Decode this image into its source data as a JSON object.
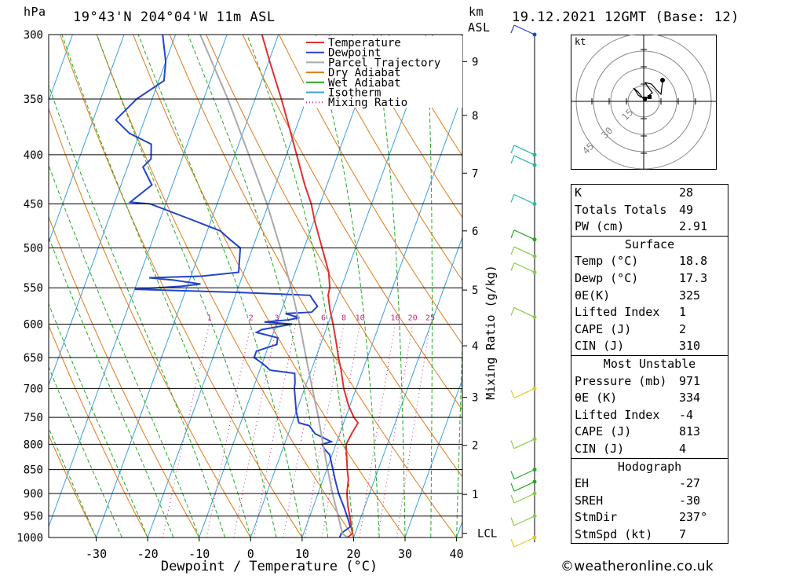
{
  "header": {
    "location": "19°43'N 204°04'W 11m ASL",
    "datetime": "19.12.2021 12GMT (Base: 12)",
    "hpa_unit": "hPa",
    "km_unit": "km",
    "asl_unit": "ASL"
  },
  "chart_data": {
    "type": "line",
    "title": "",
    "xlabel": "Dewpoint / Temperature (°C)",
    "ylabel": "hPa",
    "y2label": "km ASL",
    "mixing_ratio_label": "Mixing Ratio (g/kg)",
    "xlim": [
      -40,
      40
    ],
    "ylim": [
      1000,
      300
    ],
    "y_scale": "log",
    "x_ticks": [
      -30,
      -20,
      -10,
      0,
      10,
      20,
      30,
      40
    ],
    "pressure_ticks": [
      300,
      350,
      400,
      450,
      500,
      550,
      600,
      650,
      700,
      750,
      800,
      850,
      900,
      950,
      1000
    ],
    "km_ticks": [
      {
        "label": "9",
        "p": 320
      },
      {
        "label": "8",
        "p": 364
      },
      {
        "label": "7",
        "p": 418
      },
      {
        "label": "6",
        "p": 480
      },
      {
        "label": "5",
        "p": 553
      },
      {
        "label": "4",
        "p": 632
      },
      {
        "label": "3",
        "p": 715
      },
      {
        "label": "2",
        "p": 802
      },
      {
        "label": "1",
        "p": 902
      },
      {
        "label": "LCL",
        "p": 990
      }
    ],
    "mixing_ratio_values": [
      "1",
      "2",
      "3",
      "4",
      "6",
      "8",
      "10",
      "16",
      "20",
      "25"
    ],
    "legend": [
      "Temperature",
      "Dewpoint",
      "Parcel Trajectory",
      "Dry Adiabat",
      "Wet Adiabat",
      "Isotherm",
      "Mixing Ratio"
    ],
    "legend_position": "top-right",
    "series": [
      {
        "name": "Temperature",
        "color": "#e03030",
        "points": [
          [
            1000,
            18.8
          ],
          [
            990,
            19.5
          ],
          [
            980,
            19.0
          ],
          [
            960,
            18.2
          ],
          [
            930,
            16.8
          ],
          [
            900,
            15.6
          ],
          [
            870,
            14.9
          ],
          [
            850,
            14.0
          ],
          [
            820,
            12.8
          ],
          [
            800,
            12.0
          ],
          [
            780,
            12.3
          ],
          [
            760,
            12.8
          ],
          [
            750,
            11.6
          ],
          [
            730,
            9.8
          ],
          [
            700,
            7.6
          ],
          [
            670,
            5.8
          ],
          [
            650,
            4.4
          ],
          [
            630,
            3.1
          ],
          [
            600,
            1.0
          ],
          [
            580,
            -0.6
          ],
          [
            560,
            -2.0
          ],
          [
            550,
            -2.2
          ],
          [
            530,
            -3.5
          ],
          [
            500,
            -6.5
          ],
          [
            470,
            -9.7
          ],
          [
            450,
            -11.7
          ],
          [
            430,
            -14.3
          ],
          [
            400,
            -18.0
          ],
          [
            370,
            -22.0
          ],
          [
            350,
            -24.9
          ],
          [
            320,
            -29.8
          ],
          [
            300,
            -33.2
          ]
        ]
      },
      {
        "name": "Dewpoint",
        "color": "#2244cc",
        "points": [
          [
            1000,
            17.3
          ],
          [
            990,
            17.3
          ],
          [
            975,
            18.6
          ],
          [
            960,
            17.8
          ],
          [
            930,
            16.0
          ],
          [
            900,
            14.0
          ],
          [
            870,
            12.3
          ],
          [
            850,
            11.2
          ],
          [
            820,
            9.5
          ],
          [
            810,
            8.2
          ],
          [
            800,
            7.3
          ],
          [
            795,
            8.9
          ],
          [
            780,
            5.2
          ],
          [
            765,
            3.5
          ],
          [
            760,
            1.3
          ],
          [
            740,
            0.0
          ],
          [
            700,
            -2.0
          ],
          [
            690,
            -2.3
          ],
          [
            675,
            -3.0
          ],
          [
            670,
            -8.0
          ],
          [
            660,
            -9.8
          ],
          [
            650,
            -12.0
          ],
          [
            640,
            -12.0
          ],
          [
            630,
            -8.5
          ],
          [
            620,
            -8.8
          ],
          [
            612,
            -13.3
          ],
          [
            608,
            -12.5
          ],
          [
            600,
            -7.0
          ],
          [
            597,
            -12.5
          ],
          [
            594,
            -8.0
          ],
          [
            591,
            -6.0
          ],
          [
            585,
            -9.0
          ],
          [
            583,
            -4.0
          ],
          [
            575,
            -3.3
          ],
          [
            565,
            -4.8
          ],
          [
            560,
            -5.5
          ],
          [
            556,
            -20.0
          ],
          [
            552,
            -40.0
          ],
          [
            548,
            -31.0
          ],
          [
            545,
            -27.6
          ],
          [
            540,
            -33.0
          ],
          [
            537,
            -38.0
          ],
          [
            535,
            -28.0
          ],
          [
            530,
            -21.0
          ],
          [
            500,
            -22.4
          ],
          [
            490,
            -25.0
          ],
          [
            480,
            -27.5
          ],
          [
            465,
            -35.0
          ],
          [
            450,
            -43.0
          ],
          [
            448,
            -47.0
          ],
          [
            430,
            -44.0
          ],
          [
            412,
            -47.0
          ],
          [
            404,
            -46.0
          ],
          [
            390,
            -47.0
          ],
          [
            380,
            -52.0
          ],
          [
            368,
            -55.6
          ],
          [
            350,
            -53.0
          ],
          [
            335,
            -49.0
          ],
          [
            320,
            -50.0
          ],
          [
            300,
            -52.5
          ]
        ]
      },
      {
        "name": "Parcel Trajectory",
        "color": "#aaaaaa",
        "points": [
          [
            1000,
            18.8
          ],
          [
            990,
            17.5
          ],
          [
            950,
            15.5
          ],
          [
            900,
            12.8
          ],
          [
            850,
            10.2
          ],
          [
            800,
            7.5
          ],
          [
            750,
            4.7
          ],
          [
            700,
            1.5
          ],
          [
            650,
            -1.9
          ],
          [
            600,
            -5.5
          ],
          [
            550,
            -9.7
          ],
          [
            500,
            -14.6
          ],
          [
            450,
            -20.3
          ],
          [
            400,
            -27.3
          ],
          [
            350,
            -35.3
          ],
          [
            300,
            -45.2
          ]
        ]
      }
    ]
  },
  "hodograph": {
    "unit": "kt",
    "ring_labels": [
      "15",
      "30",
      "45"
    ]
  },
  "indices": [
    {
      "label": "K",
      "value": "28"
    },
    {
      "label": "Totals Totals",
      "value": "49"
    },
    {
      "label": "PW (cm)",
      "value": "2.91"
    }
  ],
  "surface": {
    "title": "Surface",
    "rows": [
      {
        "label": "Temp (°C)",
        "value": "18.8"
      },
      {
        "label": "Dewp (°C)",
        "value": "17.3"
      },
      {
        "label": "θE(K)",
        "value": "325"
      },
      {
        "label": "Lifted Index",
        "value": "1"
      },
      {
        "label": "CAPE (J)",
        "value": "2"
      },
      {
        "label": "CIN (J)",
        "value": "310"
      }
    ]
  },
  "most_unstable": {
    "title": "Most Unstable",
    "rows": [
      {
        "label": "Pressure (mb)",
        "value": "971"
      },
      {
        "label": "θE (K)",
        "value": "334"
      },
      {
        "label": "Lifted Index",
        "value": "-4"
      },
      {
        "label": "CAPE (J)",
        "value": "813"
      },
      {
        "label": "CIN (J)",
        "value": "4"
      }
    ]
  },
  "hodograph_table": {
    "title": "Hodograph",
    "rows": [
      {
        "label": "EH",
        "value": "-27"
      },
      {
        "label": "SREH",
        "value": "-30"
      },
      {
        "label": "StmDir",
        "value": "237°"
      },
      {
        "label": "StmSpd (kt)",
        "value": "7"
      }
    ]
  },
  "copyright": "©weatheronline.co.uk"
}
